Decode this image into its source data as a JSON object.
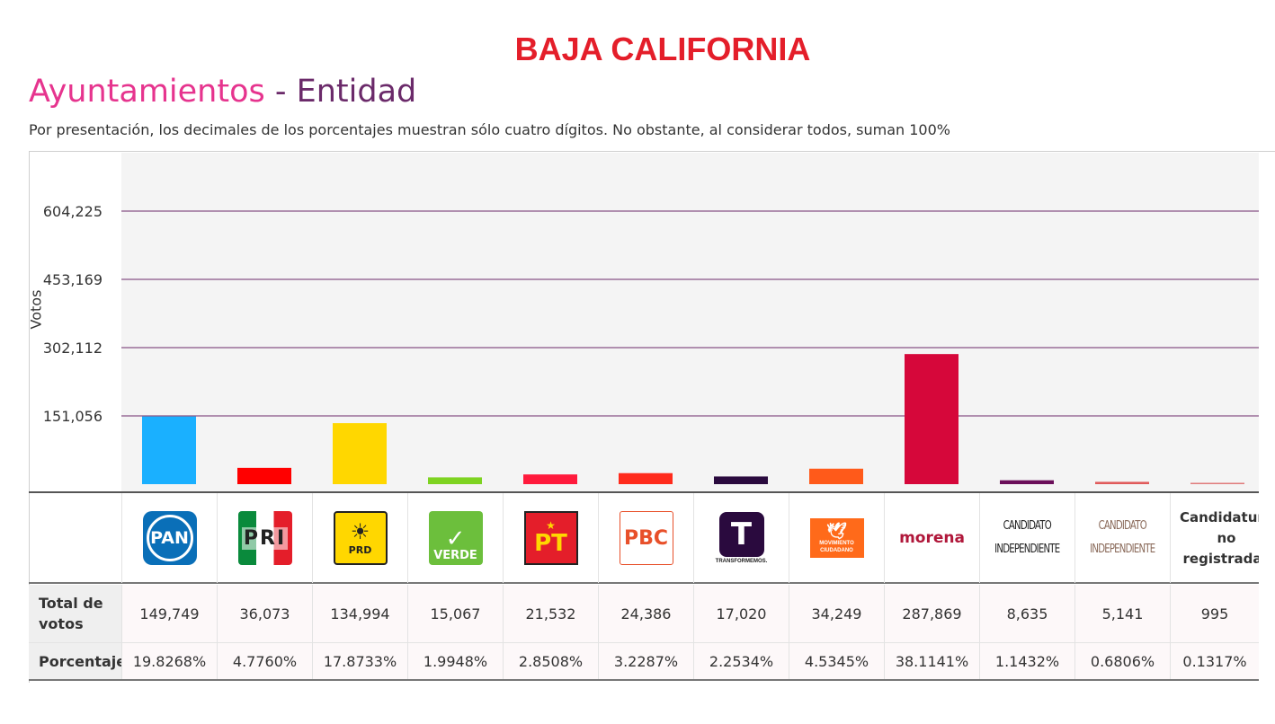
{
  "page": {
    "state": "BAJA CALIFORNIA",
    "heading_part1": "Ayuntamientos",
    "heading_sep": " - ",
    "heading_part2": "Entidad",
    "note": "Por presentación, los decimales de los porcentajes muestran sólo cuatro dígitos. No obstante, al considerar todos, suman 100%"
  },
  "table": {
    "row_votes_label": "Total de votos",
    "row_pct_label": "Porcentaje"
  },
  "logos": {
    "pan": "PAN",
    "pri": "PRI",
    "prd": "PRD",
    "verde": "VERDE",
    "pt": "PT",
    "pbc": "PBC",
    "transformemos": "TRANSFORMEMOS.",
    "mc": "MOVIMIENTO CIUDADANO",
    "morena": "morena",
    "ci1_line1": "CANDIDATO",
    "ci1_line2": "INDEPENDIENTE",
    "ci2_line1": "CANDIDATO",
    "ci2_line2": "INDEPENDIENTE",
    "cnr_line1": "Candidatura",
    "cnr_line2": "no",
    "cnr_line3": "registradas"
  },
  "chart_data": {
    "type": "bar",
    "ylabel": "Votos",
    "yticks": [
      151056,
      302112,
      453169,
      604225
    ],
    "ytick_labels": [
      "151,056",
      "302,112",
      "453,169",
      "604,225"
    ],
    "ylim": [
      0,
      755281
    ],
    "grid": true,
    "categories": [
      "PAN",
      "PRI",
      "PRD",
      "PVEM",
      "PT",
      "PBC",
      "Transformemos",
      "MC",
      "Morena",
      "Candidato Independiente 1",
      "Candidato Independiente 2",
      "Candidaturas no registradas"
    ],
    "values": [
      149749,
      36073,
      134994,
      15067,
      21532,
      24386,
      17020,
      34249,
      287869,
      8635,
      5141,
      995
    ],
    "value_labels": [
      "149,749",
      "36,073",
      "134,994",
      "15,067",
      "21,532",
      "24,386",
      "17,020",
      "34,249",
      "287,869",
      "8,635",
      "5,141",
      "995"
    ],
    "percentages": [
      "19.8268%",
      "4.7760%",
      "17.8733%",
      "1.9948%",
      "2.8508%",
      "3.2287%",
      "2.2534%",
      "4.5345%",
      "38.1141%",
      "1.1432%",
      "0.6806%",
      "0.1317%"
    ],
    "colors": [
      "#1ab0ff",
      "#ff0000",
      "#ffd700",
      "#7ed321",
      "#ff1a3c",
      "#ff2b1c",
      "#2a0a3e",
      "#ff5a1a",
      "#d6073a",
      "#6b0f5a",
      "#e05a5a",
      "#e07a7a"
    ]
  }
}
